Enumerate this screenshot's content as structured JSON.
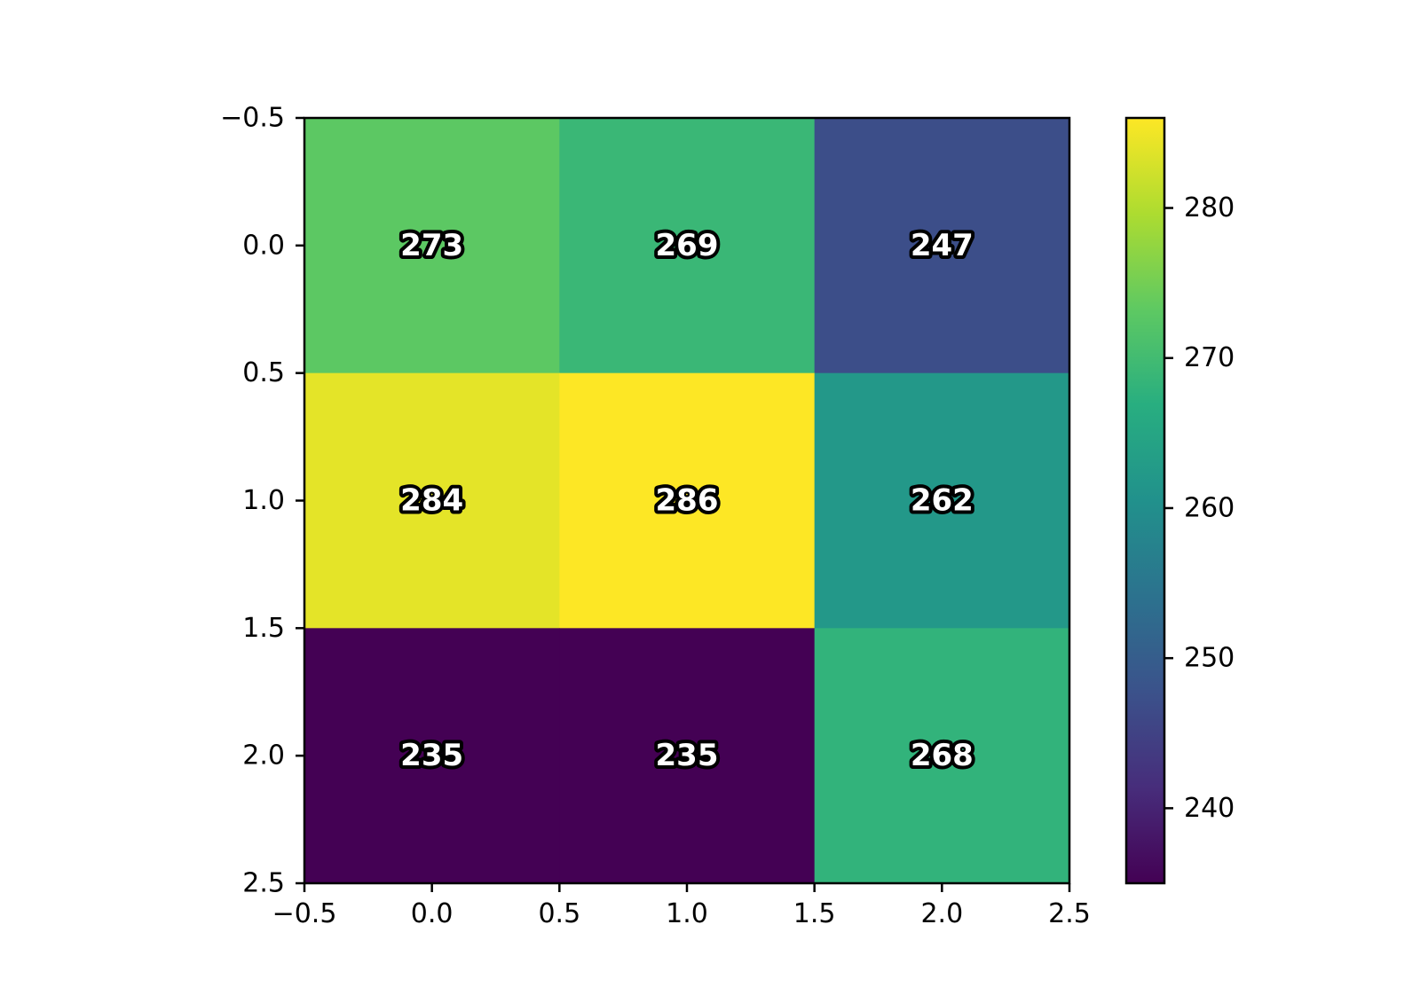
{
  "chart_data": {
    "type": "heatmap",
    "title": "",
    "xlabel": "",
    "ylabel": "",
    "rows": 3,
    "cols": 3,
    "values": [
      [
        273,
        269,
        247
      ],
      [
        284,
        286,
        262
      ],
      [
        235,
        235,
        268
      ]
    ],
    "cell_labels": [
      [
        "273",
        "269",
        "247"
      ],
      [
        "284",
        "286",
        "262"
      ],
      [
        "235",
        "235",
        "268"
      ]
    ],
    "xlim": [
      -0.5,
      2.5
    ],
    "ylim": [
      2.5,
      -0.5
    ],
    "x_ticks": [
      -0.5,
      0.0,
      0.5,
      1.0,
      1.5,
      2.0,
      2.5
    ],
    "x_tick_labels": [
      "−0.5",
      "0.0",
      "0.5",
      "1.0",
      "1.5",
      "2.0",
      "2.5"
    ],
    "y_ticks": [
      -0.5,
      0.0,
      0.5,
      1.0,
      1.5,
      2.0,
      2.5
    ],
    "y_tick_labels": [
      "−0.5",
      "0.0",
      "0.5",
      "1.0",
      "1.5",
      "2.0",
      "2.5"
    ],
    "colormap": "viridis",
    "colorbar": {
      "min": 235,
      "max": 286,
      "ticks": [
        240,
        250,
        260,
        270,
        280
      ],
      "tick_labels": [
        "240",
        "250",
        "260",
        "270",
        "280"
      ],
      "placement": "right"
    },
    "grid": false,
    "legend": "none"
  }
}
